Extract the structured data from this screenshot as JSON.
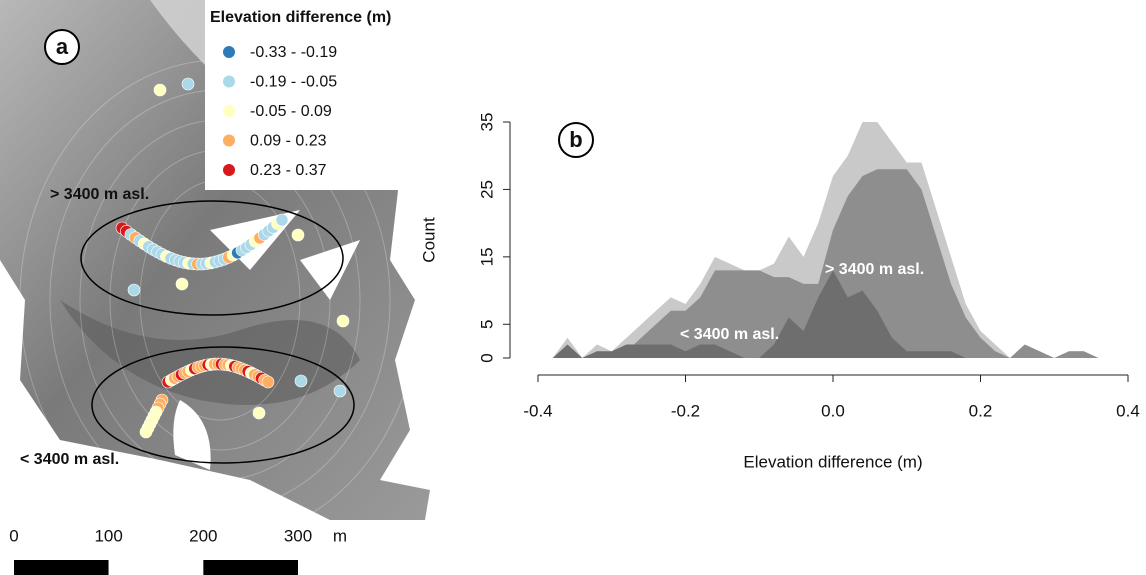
{
  "chart_data": [
    {
      "type": "map",
      "legend": {
        "title": "Elevation difference (m)",
        "items": [
          {
            "label": "-0.33 - -0.19",
            "color": "#2c7bb6"
          },
          {
            "label": "-0.19 - -0.05",
            "color": "#abd9e9"
          },
          {
            "label": "-0.05 - 0.09",
            "color": "#ffffbf"
          },
          {
            "label": "0.09 - 0.23",
            "color": "#fdae61"
          },
          {
            "label": "0.23 - 0.37",
            "color": "#d7191c"
          }
        ]
      },
      "panel_label": "a",
      "annotations": [
        "> 3400 m asl.",
        "< 3400 m asl."
      ],
      "scale_bar": {
        "ticks": [
          0,
          100,
          200,
          300
        ],
        "unit": "m"
      }
    },
    {
      "type": "area",
      "panel_label": "b",
      "x_label": "Elevation difference (m)",
      "y_label": "Count",
      "x": [
        -0.38,
        -0.36,
        -0.34,
        -0.32,
        -0.3,
        -0.28,
        -0.26,
        -0.24,
        -0.22,
        -0.2,
        -0.18,
        -0.16,
        -0.14,
        -0.12,
        -0.1,
        -0.08,
        -0.06,
        -0.04,
        -0.02,
        0.0,
        0.02,
        0.04,
        0.06,
        0.08,
        0.1,
        0.12,
        0.14,
        0.16,
        0.18,
        0.2,
        0.22,
        0.24,
        0.26,
        0.28,
        0.3,
        0.32,
        0.34,
        0.36
      ],
      "series": [
        {
          "color": "#c9c9c9",
          "values": [
            0,
            3,
            0,
            2,
            1,
            3,
            5,
            7,
            9,
            8,
            11,
            15,
            14,
            13,
            13,
            14,
            18,
            15,
            20,
            27,
            30,
            35,
            35,
            32,
            29,
            29,
            22,
            15,
            8,
            4,
            2,
            0,
            2,
            1,
            0,
            1,
            1,
            0
          ]
        },
        {
          "name": "> 3400 m asl.",
          "color": "#8e8e8e",
          "values": [
            0,
            1,
            0,
            1,
            0,
            1,
            3,
            5,
            7,
            7,
            9,
            13,
            13,
            13,
            13,
            12,
            12,
            11,
            11,
            19,
            24,
            27,
            28,
            28,
            28,
            25,
            18,
            11,
            6,
            3,
            1,
            0,
            2,
            1,
            0,
            1,
            1,
            0
          ]
        },
        {
          "name": "< 3400 m asl.",
          "color": "#6e6e6e",
          "values": [
            0,
            2,
            0,
            1,
            1,
            2,
            2,
            2,
            2,
            1,
            2,
            2,
            1,
            0,
            0,
            2,
            6,
            4,
            9,
            13,
            9,
            10,
            7,
            3,
            1,
            1,
            1,
            1,
            0,
            0,
            0,
            0,
            0,
            0,
            0,
            0,
            0,
            0
          ]
        }
      ],
      "xlim": [
        -0.4,
        0.4
      ],
      "xticks": [
        -0.4,
        -0.2,
        {
          "value": 0,
          "label": "0.0"
        },
        0.2,
        0.4
      ],
      "ylim": [
        0,
        35
      ],
      "yticks": [
        0,
        5,
        15,
        25,
        35
      ]
    }
  ]
}
